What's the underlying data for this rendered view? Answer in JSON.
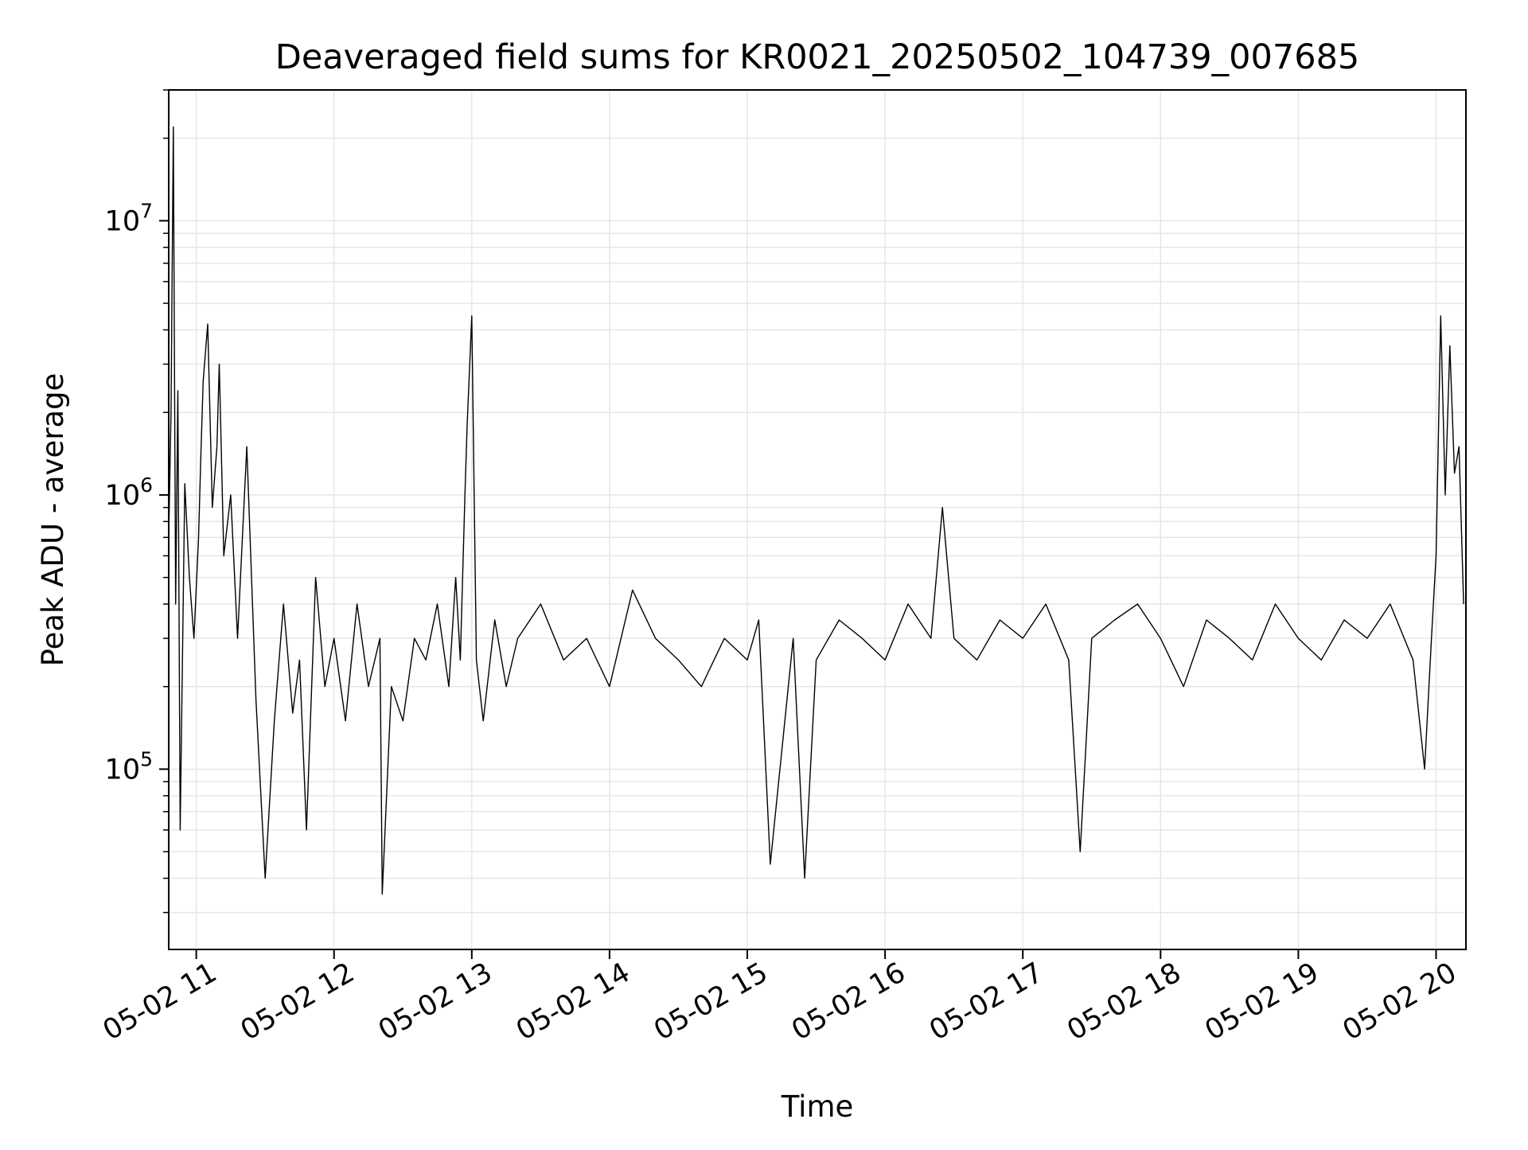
{
  "chart_data": {
    "type": "line",
    "title": "Deaveraged field sums for KR0021_20250502_104739_007685",
    "xlabel": "Time",
    "ylabel": "Peak ADU - average",
    "y_scale": "log",
    "ylim": [
      22000,
      30000000
    ],
    "xlim": [
      "2025-05-02 10:48",
      "2025-05-02 20:13"
    ],
    "grid": true,
    "line_color": "#000000",
    "grid_color": "#e6e6e6",
    "x_ticks": [
      {
        "time": "2025-05-02 11:00",
        "label": "05-02 11"
      },
      {
        "time": "2025-05-02 12:00",
        "label": "05-02 12"
      },
      {
        "time": "2025-05-02 13:00",
        "label": "05-02 13"
      },
      {
        "time": "2025-05-02 14:00",
        "label": "05-02 14"
      },
      {
        "time": "2025-05-02 15:00",
        "label": "05-02 15"
      },
      {
        "time": "2025-05-02 16:00",
        "label": "05-02 16"
      },
      {
        "time": "2025-05-02 17:00",
        "label": "05-02 17"
      },
      {
        "time": "2025-05-02 18:00",
        "label": "05-02 18"
      },
      {
        "time": "2025-05-02 19:00",
        "label": "05-02 19"
      },
      {
        "time": "2025-05-02 20:00",
        "label": "05-02 20"
      }
    ],
    "y_ticks": [
      {
        "value": 100000,
        "base": "10",
        "exp": "5"
      },
      {
        "value": 1000000,
        "base": "10",
        "exp": "6"
      },
      {
        "value": 10000000,
        "base": "10",
        "exp": "7"
      }
    ],
    "series": [
      {
        "x": [
          "2025-05-02 10:48",
          "2025-05-02 10:49",
          "2025-05-02 10:50",
          "2025-05-02 10:51",
          "2025-05-02 10:52",
          "2025-05-02 10:53",
          "2025-05-02 10:55",
          "2025-05-02 10:57",
          "2025-05-02 10:59",
          "2025-05-02 11:01",
          "2025-05-02 11:02",
          "2025-05-02 11:03",
          "2025-05-02 11:05",
          "2025-05-02 11:07",
          "2025-05-02 11:09",
          "2025-05-02 11:10",
          "2025-05-02 11:12",
          "2025-05-02 11:15",
          "2025-05-02 11:18",
          "2025-05-02 11:22",
          "2025-05-02 11:26",
          "2025-05-02 11:30",
          "2025-05-02 11:34",
          "2025-05-02 11:38",
          "2025-05-02 11:42",
          "2025-05-02 11:45",
          "2025-05-02 11:48",
          "2025-05-02 11:52",
          "2025-05-02 11:56",
          "2025-05-02 12:00",
          "2025-05-02 12:05",
          "2025-05-02 12:10",
          "2025-05-02 12:15",
          "2025-05-02 12:20",
          "2025-05-02 12:21",
          "2025-05-02 12:25",
          "2025-05-02 12:30",
          "2025-05-02 12:35",
          "2025-05-02 12:40",
          "2025-05-02 12:45",
          "2025-05-02 12:50",
          "2025-05-02 12:53",
          "2025-05-02 12:55",
          "2025-05-02 12:57",
          "2025-05-02 12:58",
          "2025-05-02 13:00",
          "2025-05-02 13:02",
          "2025-05-02 13:05",
          "2025-05-02 13:10",
          "2025-05-02 13:15",
          "2025-05-02 13:20",
          "2025-05-02 13:30",
          "2025-05-02 13:40",
          "2025-05-02 13:50",
          "2025-05-02 14:00",
          "2025-05-02 14:10",
          "2025-05-02 14:20",
          "2025-05-02 14:30",
          "2025-05-02 14:40",
          "2025-05-02 14:50",
          "2025-05-02 15:00",
          "2025-05-02 15:05",
          "2025-05-02 15:10",
          "2025-05-02 15:20",
          "2025-05-02 15:25",
          "2025-05-02 15:30",
          "2025-05-02 15:40",
          "2025-05-02 15:50",
          "2025-05-02 16:00",
          "2025-05-02 16:10",
          "2025-05-02 16:20",
          "2025-05-02 16:25",
          "2025-05-02 16:30",
          "2025-05-02 16:40",
          "2025-05-02 16:50",
          "2025-05-02 17:00",
          "2025-05-02 17:10",
          "2025-05-02 17:20",
          "2025-05-02 17:25",
          "2025-05-02 17:30",
          "2025-05-02 17:40",
          "2025-05-02 17:50",
          "2025-05-02 18:00",
          "2025-05-02 18:10",
          "2025-05-02 18:20",
          "2025-05-02 18:30",
          "2025-05-02 18:40",
          "2025-05-02 18:50",
          "2025-05-02 19:00",
          "2025-05-02 19:10",
          "2025-05-02 19:20",
          "2025-05-02 19:30",
          "2025-05-02 19:40",
          "2025-05-02 19:50",
          "2025-05-02 19:55",
          "2025-05-02 19:58",
          "2025-05-02 20:00",
          "2025-05-02 20:02",
          "2025-05-02 20:04",
          "2025-05-02 20:06",
          "2025-05-02 20:08",
          "2025-05-02 20:10",
          "2025-05-02 20:12"
        ],
        "y": [
          700000,
          2000000,
          22000000,
          400000,
          2400000,
          60000,
          1100000,
          500000,
          300000,
          700000,
          1400000,
          2600000,
          4200000,
          900000,
          1500000,
          3000000,
          600000,
          1000000,
          300000,
          1500000,
          180000,
          40000,
          150000,
          400000,
          160000,
          250000,
          60000,
          500000,
          200000,
          300000,
          150000,
          400000,
          200000,
          300000,
          35000,
          200000,
          150000,
          300000,
          250000,
          400000,
          200000,
          500000,
          250000,
          1000000,
          1800000,
          4500000,
          250000,
          150000,
          350000,
          200000,
          300000,
          400000,
          250000,
          300000,
          200000,
          450000,
          300000,
          250000,
          200000,
          300000,
          250000,
          350000,
          45000,
          300000,
          40000,
          250000,
          350000,
          300000,
          250000,
          400000,
          300000,
          900000,
          300000,
          250000,
          350000,
          300000,
          400000,
          250000,
          50000,
          300000,
          350000,
          400000,
          300000,
          200000,
          350000,
          300000,
          250000,
          400000,
          300000,
          250000,
          350000,
          300000,
          400000,
          250000,
          100000,
          300000,
          600000,
          4500000,
          1000000,
          3500000,
          1200000,
          1500000,
          400000
        ]
      }
    ]
  }
}
